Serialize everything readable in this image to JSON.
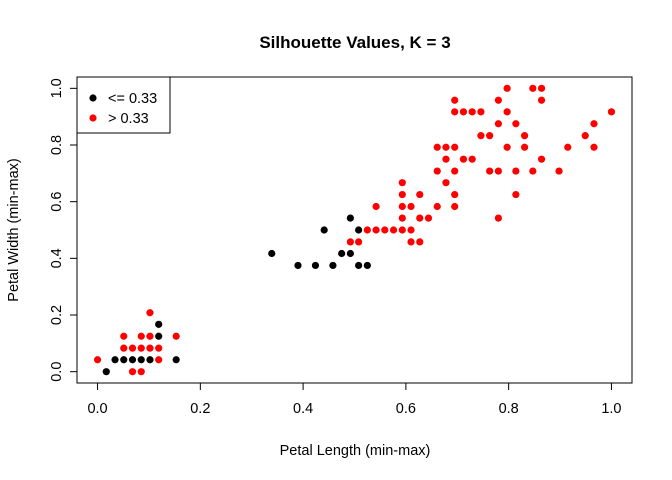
{
  "chart_data": {
    "type": "scatter",
    "title": "Silhouette Values, K = 3",
    "xlabel": "Petal Length (min-max)",
    "ylabel": "Petal Width (min-max)",
    "xlim": [
      -0.04,
      1.04
    ],
    "ylim": [
      -0.04,
      1.04
    ],
    "x_ticks": [
      0.0,
      0.2,
      0.4,
      0.6,
      0.8,
      1.0
    ],
    "x_tick_labels": [
      "0.0",
      "0.2",
      "0.4",
      "0.6",
      "0.8",
      "1.0"
    ],
    "y_ticks": [
      0.0,
      0.2,
      0.4,
      0.6,
      0.8,
      1.0
    ],
    "y_tick_labels": [
      "0.0",
      "0.2",
      "0.4",
      "0.6",
      "0.8",
      "1.0"
    ],
    "grid": false,
    "legend_position": "top-left",
    "series": [
      {
        "name": "<= 0.33",
        "color": "#000000",
        "points": [
          [
            0.017,
            0.0
          ],
          [
            0.034,
            0.042
          ],
          [
            0.051,
            0.042
          ],
          [
            0.068,
            0.042
          ],
          [
            0.085,
            0.042
          ],
          [
            0.102,
            0.042
          ],
          [
            0.119,
            0.125
          ],
          [
            0.119,
            0.167
          ],
          [
            0.153,
            0.042
          ],
          [
            0.339,
            0.417
          ],
          [
            0.39,
            0.375
          ],
          [
            0.424,
            0.375
          ],
          [
            0.441,
            0.5
          ],
          [
            0.458,
            0.375
          ],
          [
            0.475,
            0.417
          ],
          [
            0.492,
            0.417
          ],
          [
            0.492,
            0.542
          ],
          [
            0.508,
            0.5
          ],
          [
            0.508,
            0.375
          ],
          [
            0.525,
            0.375
          ]
        ]
      },
      {
        "name": "> 0.33",
        "color": "#ff0000",
        "points": [
          [
            0.0,
            0.042
          ],
          [
            0.051,
            0.083
          ],
          [
            0.051,
            0.125
          ],
          [
            0.068,
            0.0
          ],
          [
            0.068,
            0.083
          ],
          [
            0.085,
            0.0
          ],
          [
            0.085,
            0.083
          ],
          [
            0.085,
            0.125
          ],
          [
            0.102,
            0.083
          ],
          [
            0.102,
            0.125
          ],
          [
            0.102,
            0.208
          ],
          [
            0.119,
            0.042
          ],
          [
            0.119,
            0.083
          ],
          [
            0.153,
            0.125
          ],
          [
            0.492,
            0.458
          ],
          [
            0.508,
            0.458
          ],
          [
            0.525,
            0.5
          ],
          [
            0.542,
            0.5
          ],
          [
            0.542,
            0.583
          ],
          [
            0.559,
            0.5
          ],
          [
            0.576,
            0.5
          ],
          [
            0.593,
            0.5
          ],
          [
            0.593,
            0.542
          ],
          [
            0.593,
            0.583
          ],
          [
            0.593,
            0.625
          ],
          [
            0.593,
            0.667
          ],
          [
            0.61,
            0.458
          ],
          [
            0.61,
            0.5
          ],
          [
            0.61,
            0.583
          ],
          [
            0.627,
            0.458
          ],
          [
            0.627,
            0.542
          ],
          [
            0.627,
            0.625
          ],
          [
            0.644,
            0.542
          ],
          [
            0.661,
            0.583
          ],
          [
            0.661,
            0.708
          ],
          [
            0.661,
            0.792
          ],
          [
            0.678,
            0.667
          ],
          [
            0.678,
            0.75
          ],
          [
            0.678,
            0.792
          ],
          [
            0.695,
            0.583
          ],
          [
            0.695,
            0.625
          ],
          [
            0.695,
            0.708
          ],
          [
            0.695,
            0.792
          ],
          [
            0.695,
            0.917
          ],
          [
            0.695,
            0.958
          ],
          [
            0.712,
            0.75
          ],
          [
            0.712,
            0.917
          ],
          [
            0.729,
            0.75
          ],
          [
            0.729,
            0.917
          ],
          [
            0.746,
            0.833
          ],
          [
            0.746,
            0.917
          ],
          [
            0.763,
            0.708
          ],
          [
            0.763,
            0.833
          ],
          [
            0.78,
            0.542
          ],
          [
            0.78,
            0.708
          ],
          [
            0.78,
            0.875
          ],
          [
            0.78,
            0.958
          ],
          [
            0.797,
            0.792
          ],
          [
            0.797,
            0.917
          ],
          [
            0.797,
            1.0
          ],
          [
            0.814,
            0.625
          ],
          [
            0.814,
            0.708
          ],
          [
            0.814,
            0.875
          ],
          [
            0.831,
            0.792
          ],
          [
            0.831,
            0.833
          ],
          [
            0.847,
            0.708
          ],
          [
            0.847,
            1.0
          ],
          [
            0.864,
            0.75
          ],
          [
            0.864,
            0.958
          ],
          [
            0.864,
            1.0
          ],
          [
            0.898,
            0.708
          ],
          [
            0.915,
            0.792
          ],
          [
            0.949,
            0.833
          ],
          [
            0.966,
            0.792
          ],
          [
            0.966,
            0.875
          ],
          [
            1.0,
            0.917
          ]
        ]
      }
    ]
  }
}
